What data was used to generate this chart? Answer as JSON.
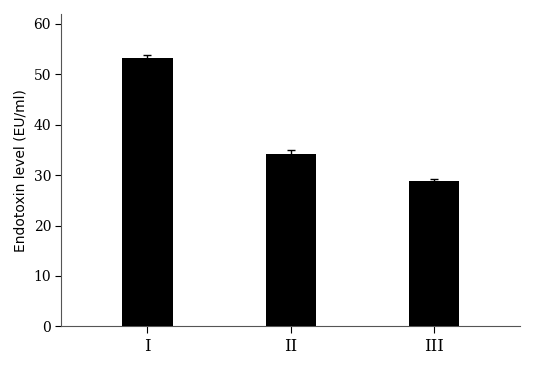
{
  "categories": [
    "I",
    "II",
    "III"
  ],
  "values": [
    53.2,
    34.2,
    28.8
  ],
  "errors": [
    0.6,
    0.7,
    0.5
  ],
  "bar_color": "#000000",
  "bar_width": 0.35,
  "ylabel": "Endotoxin level (EU/ml)",
  "ylim": [
    0,
    62
  ],
  "yticks": [
    0,
    10,
    20,
    30,
    40,
    50,
    60
  ],
  "background_color": "#ffffff",
  "ylabel_fontsize": 10,
  "tick_fontsize": 10,
  "xtick_fontsize": 12,
  "figsize": [
    5.34,
    3.69
  ],
  "dpi": 100,
  "capsize": 3,
  "ecolor": "#000000",
  "elinewidth": 1.0,
  "xlim": [
    -0.6,
    2.6
  ]
}
